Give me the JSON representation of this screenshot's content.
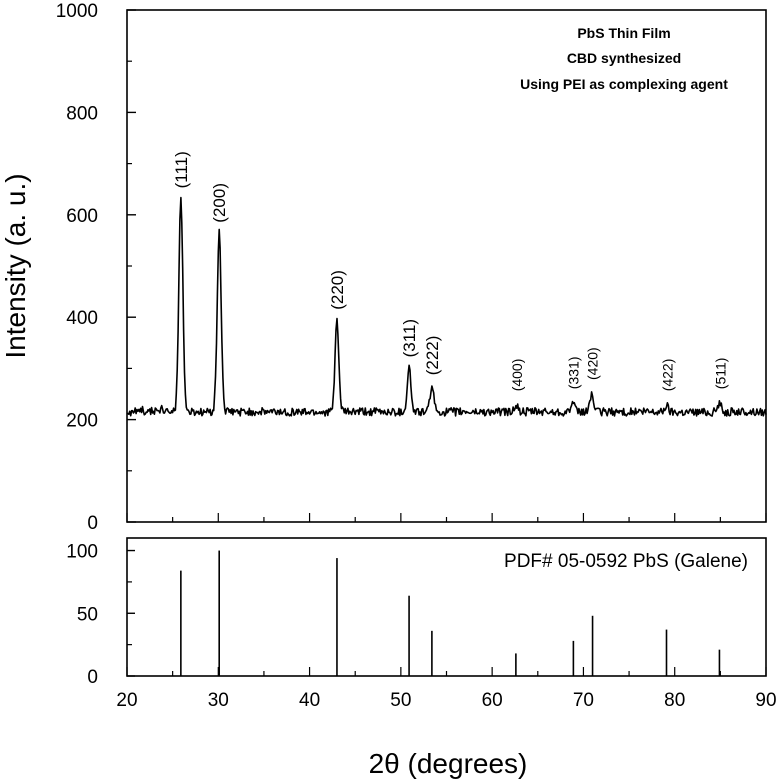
{
  "chart_data": [
    {
      "type": "line",
      "ylabel": "Intensity (a. u.)",
      "xlim": [
        20,
        90
      ],
      "ylim": [
        0,
        1000
      ],
      "y_ticks": [
        "0",
        "200",
        "400",
        "600",
        "800",
        "1000"
      ],
      "annotations": [
        "PbS Thin Film",
        "CBD synthesized",
        "Using PEI as complexing agent"
      ],
      "baseline": 215,
      "peaks": [
        {
          "label": "(111)",
          "x": 25.9,
          "y": 632
        },
        {
          "label": "(200)",
          "x": 30.1,
          "y": 565
        },
        {
          "label": "(220)",
          "x": 43.0,
          "y": 395
        },
        {
          "label": "(311)",
          "x": 50.9,
          "y": 302
        },
        {
          "label": "(222)",
          "x": 53.4,
          "y": 267
        },
        {
          "label": "(400)",
          "x": 62.6,
          "y": 228
        },
        {
          "label": "(331)",
          "x": 68.8,
          "y": 232
        },
        {
          "label": "(420)",
          "x": 70.9,
          "y": 250
        },
        {
          "label": "(422)",
          "x": 79.1,
          "y": 228
        },
        {
          "label": "(511)",
          "x": 84.9,
          "y": 232
        }
      ],
      "grid": false
    },
    {
      "type": "bar",
      "title": "PDF# 05-0592 PbS (Galene)",
      "xlabel": "2θ (degrees)",
      "xlim": [
        20,
        90
      ],
      "ylim": [
        0,
        110
      ],
      "x_ticks": [
        "20",
        "30",
        "40",
        "50",
        "60",
        "70",
        "80",
        "90"
      ],
      "y_ticks": [
        "0",
        "50",
        "100"
      ],
      "x": [
        25.9,
        30.1,
        43.0,
        50.9,
        53.4,
        62.6,
        68.9,
        71.0,
        79.1,
        84.9
      ],
      "values": [
        84,
        100,
        94,
        64,
        36,
        18,
        28,
        48,
        37,
        21
      ],
      "grid": false
    }
  ]
}
